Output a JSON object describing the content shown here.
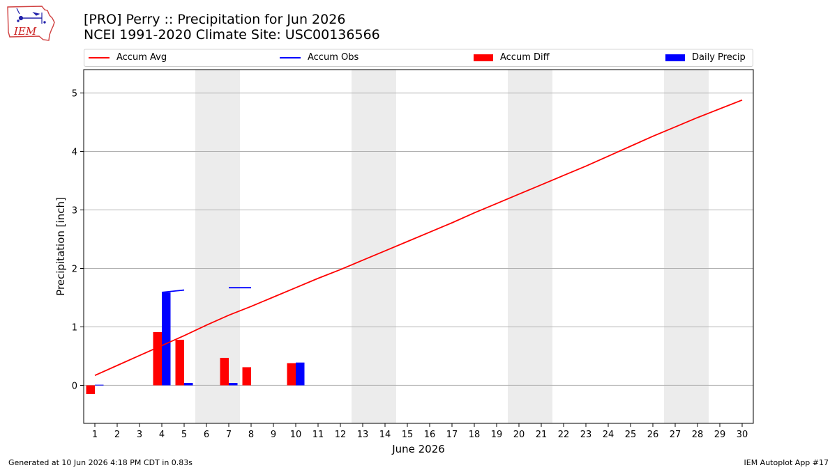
{
  "brand": {
    "logo_text": "IEM"
  },
  "header": {
    "title_line1": "[PRO] Perry :: Precipitation for Jun 2026",
    "title_line2": "NCEI 1991-2020 Climate Site: USC00136566"
  },
  "legend": {
    "items": [
      {
        "label": "Accum Avg",
        "color": "#ff0000",
        "kind": "line"
      },
      {
        "label": "Accum Obs",
        "color": "#0000ff",
        "kind": "line"
      },
      {
        "label": "Accum Diff",
        "color": "#ff0000",
        "kind": "box"
      },
      {
        "label": "Daily Precip",
        "color": "#0000ff",
        "kind": "box"
      }
    ]
  },
  "footer": {
    "left": "Generated at 10 Jun 2026 4:18 PM CDT in 0.83s",
    "right": "IEM Autoplot App #17"
  },
  "chart_data": {
    "type": "bar",
    "xlabel": "June 2026",
    "ylabel": "Precipitation [inch]",
    "xlim": [
      0.5,
      30.5
    ],
    "ylim": [
      -0.65,
      5.4
    ],
    "x_ticks": [
      1,
      2,
      3,
      4,
      5,
      6,
      7,
      8,
      9,
      10,
      11,
      12,
      13,
      14,
      15,
      16,
      17,
      18,
      19,
      20,
      21,
      22,
      23,
      24,
      25,
      26,
      27,
      28,
      29,
      30
    ],
    "y_ticks": [
      0,
      1,
      2,
      3,
      4,
      5
    ],
    "grid": "horizontal",
    "legend_position": "top",
    "weekend_shading": [
      [
        5.5,
        7.5
      ],
      [
        12.5,
        14.5
      ],
      [
        19.5,
        21.5
      ],
      [
        26.5,
        28.5
      ]
    ],
    "accum_avg": {
      "name": "Accum Avg",
      "color": "#ff0000",
      "x": [
        1,
        2,
        3,
        4,
        5,
        6,
        7,
        8,
        9,
        10,
        11,
        12,
        13,
        14,
        15,
        16,
        17,
        18,
        19,
        20,
        21,
        22,
        23,
        24,
        25,
        26,
        27,
        28,
        29,
        30
      ],
      "values": [
        0.17,
        0.34,
        0.51,
        0.68,
        0.85,
        1.03,
        1.2,
        1.35,
        1.51,
        1.67,
        1.83,
        1.98,
        2.14,
        2.3,
        2.46,
        2.62,
        2.78,
        2.95,
        3.11,
        3.27,
        3.43,
        3.59,
        3.75,
        3.92,
        4.09,
        4.26,
        4.42,
        4.58,
        4.73,
        4.88
      ]
    },
    "accum_obs": {
      "name": "Accum Obs",
      "color": "#0000ff",
      "segments": [
        {
          "x": [
            4,
            5
          ],
          "values": [
            1.59,
            1.63
          ]
        },
        {
          "x": [
            7,
            8
          ],
          "values": [
            1.67,
            1.67
          ]
        }
      ]
    },
    "accum_diff": {
      "name": "Accum Diff",
      "color": "#ff0000",
      "x": [
        1,
        4,
        5,
        7,
        8,
        10
      ],
      "values": [
        -0.15,
        0.91,
        0.78,
        0.47,
        0.31,
        0.38
      ]
    },
    "daily_precip": {
      "name": "Daily Precip",
      "color": "#0000ff",
      "x": [
        1,
        4,
        5,
        7,
        10
      ],
      "values": [
        0.01,
        1.59,
        0.04,
        0.04,
        0.39
      ]
    }
  }
}
